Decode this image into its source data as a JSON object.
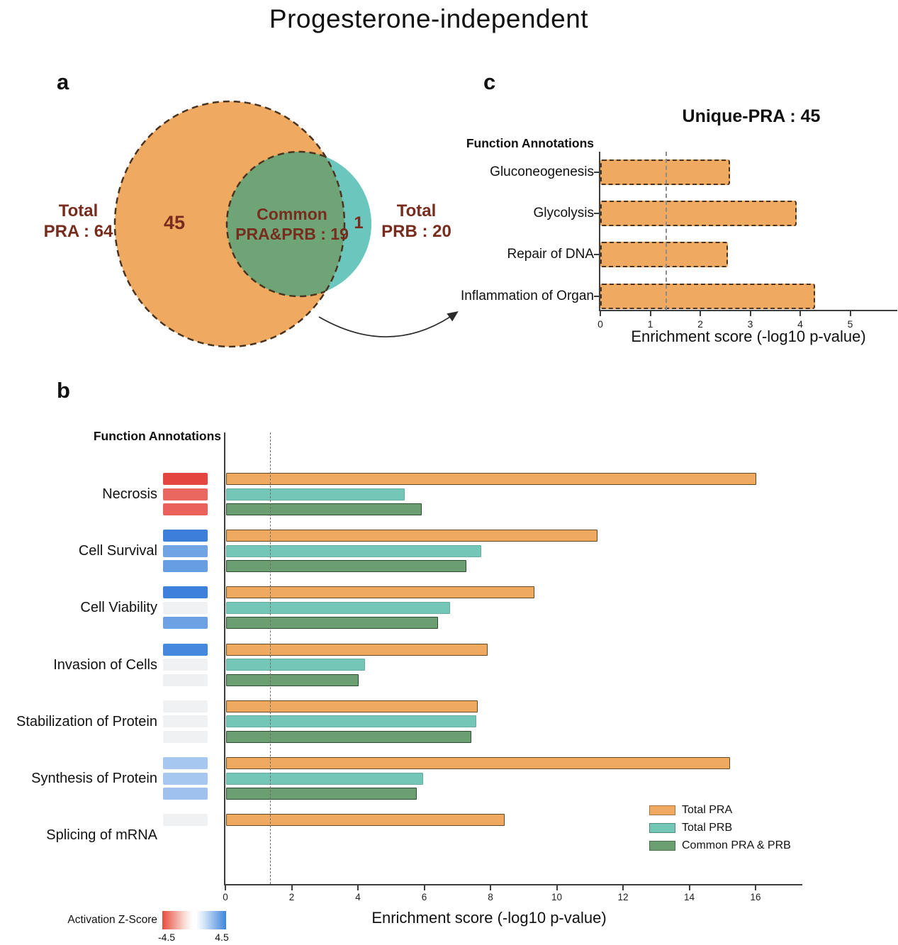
{
  "title": "Progesterone-independent",
  "panels": {
    "a": "a",
    "b": "b",
    "c": "c"
  },
  "venn": {
    "left_circle_label": "45",
    "overlap_line1": "Common",
    "overlap_line2": "PRA&PRB : 19",
    "sliver_label": "1",
    "left_caption_line1": "Total",
    "left_caption_line2": "PRA : 64",
    "right_caption_line1": "Total",
    "right_caption_line2": "PRB : 20",
    "colors": {
      "pra": "#F0A961",
      "prb": "#6BC6BE",
      "common": "#6FA477",
      "outline": "#4A3420",
      "caption_text": "#772C1E"
    }
  },
  "chart_data": [
    {
      "id": "unique-pra-enrichment",
      "type": "bar",
      "title": "Unique-PRA : 45",
      "axis_header": "Function Annotations",
      "categories": [
        "Gluconeogenesis",
        "Glycolysis",
        "Repair of DNA",
        "Inflammation of Organ"
      ],
      "values": [
        2.6,
        3.93,
        2.55,
        4.3
      ],
      "xlabel": "Enrichment score (-log10 p-value)",
      "xlim": [
        0,
        5.9
      ],
      "xticks": [
        0,
        1,
        2,
        3,
        4,
        5
      ],
      "ref_line": 1.3,
      "bar_color": "#F0A961",
      "bar_border": "dashed",
      "grid": false,
      "legend_position": "none"
    },
    {
      "id": "function-enrichment-grouped",
      "type": "bar",
      "axis_header": "Function Annotations",
      "categories": [
        "Necrosis",
        "Cell Survival",
        "Cell Viability",
        "Invasion of Cells",
        "Stabilization of Protein",
        "Synthesis of Protein",
        "Splicing of mRNA"
      ],
      "series": [
        {
          "name": "Total PRA",
          "color": "#F0A961",
          "values": [
            16.0,
            11.2,
            9.3,
            7.9,
            7.6,
            15.2,
            8.4
          ]
        },
        {
          "name": "Total PRB",
          "color": "#74C6B6",
          "values": [
            5.4,
            7.7,
            6.75,
            4.2,
            7.55,
            5.95,
            null
          ]
        },
        {
          "name": "Common PRA & PRB",
          "color": "#6B9F72",
          "values": [
            5.9,
            7.25,
            6.4,
            4.0,
            7.4,
            5.75,
            null
          ]
        }
      ],
      "xlabel": "Enrichment score (-log10 p-value)",
      "xlim": [
        0,
        17.4
      ],
      "xticks": [
        0,
        2,
        4,
        6,
        8,
        10,
        12,
        14,
        16
      ],
      "ref_line": 1.35,
      "grid": false,
      "legend_position": "inside-right",
      "zscore_blocks": [
        [
          "#E4453F",
          "#EA675F",
          "#E9615A"
        ],
        [
          "#3C7EDA",
          "#6FA3E4",
          "#679DE2"
        ],
        [
          "#3D81DC",
          "#F0F1F3",
          "#6CA1E3"
        ],
        [
          "#4589DF",
          "#F0F1F3",
          "#EFF0F2"
        ],
        [
          "#F0F1F3",
          "#F0F1F3",
          "#F0F1F3"
        ],
        [
          "#A6C7EF",
          "#A6C7EF",
          "#9EC2ED"
        ],
        [
          "#F0F1F3",
          null,
          null
        ]
      ],
      "zscore_legend": {
        "label": "Activation Z-Score",
        "min_label": "-4.5",
        "max_label": "4.5",
        "min_color": "#E74C3C",
        "max_color": "#3D85DC"
      }
    }
  ]
}
